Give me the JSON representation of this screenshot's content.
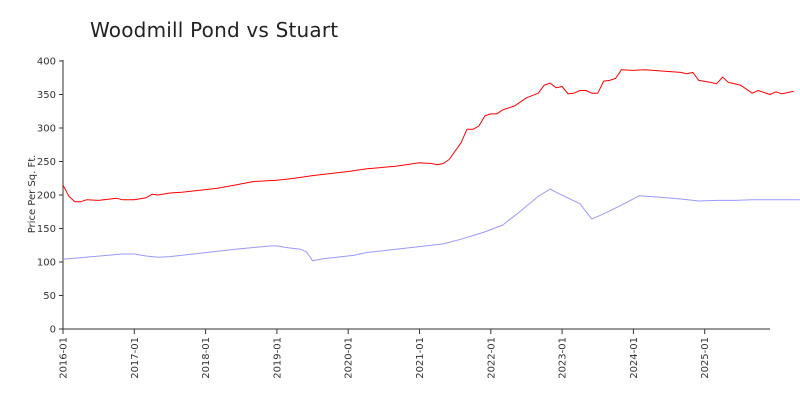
{
  "chart_data": {
    "type": "line",
    "title": "Woodmill Pond vs Stuart",
    "xlabel": "",
    "ylabel": "Price Per Sq. Ft.",
    "ylim": [
      0,
      400
    ],
    "yticks": [
      0,
      50,
      100,
      150,
      200,
      250,
      300,
      350,
      400
    ],
    "xticks": [
      "2016-01",
      "2017-01",
      "2018-01",
      "2019-01",
      "2020-01",
      "2021-01",
      "2022-01",
      "2023-01",
      "2024-01",
      "2025-01"
    ],
    "grid": false,
    "legend": "none",
    "x_start": "2016-01",
    "series": [
      {
        "color": "#ff0000",
        "points": [
          [
            "2016-01",
            215
          ],
          [
            "2016-02",
            198
          ],
          [
            "2016-03",
            190
          ],
          [
            "2016-04",
            190
          ],
          [
            "2016-05",
            193
          ],
          [
            "2016-07",
            192
          ],
          [
            "2016-10",
            195
          ],
          [
            "2016-11",
            193
          ],
          [
            "2017-01",
            193
          ],
          [
            "2017-03",
            196
          ],
          [
            "2017-04",
            201
          ],
          [
            "2017-05",
            200
          ],
          [
            "2017-07",
            203
          ],
          [
            "2017-09",
            204
          ],
          [
            "2018-01",
            208
          ],
          [
            "2018-03",
            210
          ],
          [
            "2018-06",
            215
          ],
          [
            "2018-09",
            220
          ],
          [
            "2019-01",
            222
          ],
          [
            "2019-04",
            225
          ],
          [
            "2019-07",
            229
          ],
          [
            "2020-01",
            235
          ],
          [
            "2020-04",
            239
          ],
          [
            "2020-09",
            243
          ],
          [
            "2021-01",
            248
          ],
          [
            "2021-03",
            247
          ],
          [
            "2021-04",
            245
          ],
          [
            "2021-05",
            247
          ],
          [
            "2021-06",
            253
          ],
          [
            "2021-08",
            278
          ],
          [
            "2021-09",
            298
          ],
          [
            "2021-10",
            298
          ],
          [
            "2021-11",
            303
          ],
          [
            "2021-12",
            318
          ],
          [
            "2022-01",
            321
          ],
          [
            "2022-02",
            321
          ],
          [
            "2022-03",
            327
          ],
          [
            "2022-05",
            333
          ],
          [
            "2022-07",
            345
          ],
          [
            "2022-09",
            352
          ],
          [
            "2022-10",
            364
          ],
          [
            "2022-11",
            367
          ],
          [
            "2022-12",
            360
          ],
          [
            "2023-01",
            362
          ],
          [
            "2023-02",
            351
          ],
          [
            "2023-03",
            352
          ],
          [
            "2023-04",
            356
          ],
          [
            "2023-05",
            356
          ],
          [
            "2023-06",
            352
          ],
          [
            "2023-07",
            352
          ],
          [
            "2023-08",
            370
          ],
          [
            "2023-09",
            371
          ],
          [
            "2023-10",
            374
          ],
          [
            "2023-11",
            387
          ],
          [
            "2024-01",
            386
          ],
          [
            "2024-03",
            387
          ],
          [
            "2024-06",
            385
          ],
          [
            "2024-09",
            383
          ],
          [
            "2024-10",
            381
          ],
          [
            "2024-11",
            383
          ],
          [
            "2024-12",
            371
          ],
          [
            "2025-02",
            368
          ],
          [
            "2025-03",
            366
          ],
          [
            "2025-04",
            376
          ],
          [
            "2025-05",
            368
          ],
          [
            "2025-07",
            364
          ],
          [
            "2025-08",
            358
          ],
          [
            "2025-09",
            352
          ],
          [
            "2025-10",
            356
          ],
          [
            "2025-11",
            353
          ],
          [
            "2025-12",
            350
          ],
          [
            "2026-01",
            354
          ],
          [
            "2026-02",
            351
          ],
          [
            "2026-04",
            355
          ]
        ]
      },
      {
        "color": "#9999ff",
        "points": [
          [
            "2016-01",
            104
          ],
          [
            "2016-06",
            108
          ],
          [
            "2016-11",
            112
          ],
          [
            "2017-01",
            112
          ],
          [
            "2017-03",
            109
          ],
          [
            "2017-05",
            107
          ],
          [
            "2017-07",
            108
          ],
          [
            "2017-10",
            111
          ],
          [
            "2018-01",
            114
          ],
          [
            "2018-06",
            119
          ],
          [
            "2018-12",
            124
          ],
          [
            "2019-01",
            124
          ],
          [
            "2019-03",
            121
          ],
          [
            "2019-05",
            119
          ],
          [
            "2019-06",
            115
          ],
          [
            "2019-07",
            102
          ],
          [
            "2019-09",
            105
          ],
          [
            "2019-12",
            108
          ],
          [
            "2020-02",
            110
          ],
          [
            "2020-04",
            114
          ],
          [
            "2020-06",
            116
          ],
          [
            "2020-09",
            119
          ],
          [
            "2021-01",
            123
          ],
          [
            "2021-05",
            127
          ],
          [
            "2021-08",
            134
          ],
          [
            "2021-12",
            145
          ],
          [
            "2022-03",
            155
          ],
          [
            "2022-06",
            176
          ],
          [
            "2022-09",
            198
          ],
          [
            "2022-11",
            209
          ],
          [
            "2022-12",
            204
          ],
          [
            "2023-04",
            187
          ],
          [
            "2023-06",
            164
          ],
          [
            "2023-08",
            172
          ],
          [
            "2023-11",
            185
          ],
          [
            "2024-02",
            199
          ],
          [
            "2024-05",
            197
          ],
          [
            "2024-09",
            194
          ],
          [
            "2024-12",
            191
          ],
          [
            "2025-03",
            192
          ],
          [
            "2025-06",
            192
          ],
          [
            "2025-09",
            193
          ],
          [
            "2026-01",
            193
          ],
          [
            "2026-05",
            193
          ]
        ]
      }
    ]
  }
}
